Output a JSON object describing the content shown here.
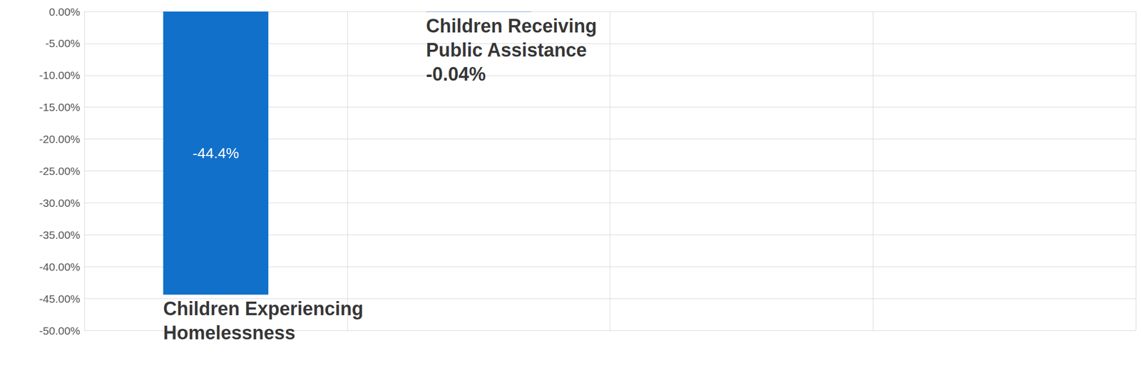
{
  "chart_data": {
    "type": "bar",
    "categories": [
      "Children Experiencing Homelessness",
      "Children Receiving Public Assistance",
      null,
      null
    ],
    "values": [
      -44.4,
      -0.04,
      null,
      null
    ],
    "value_labels": [
      "-44.4%",
      "-0.04%",
      null,
      null
    ],
    "color": "#1070ca",
    "ylim": [
      -50,
      0
    ],
    "yticks": [
      {
        "value": 0,
        "label": "0.00%"
      },
      {
        "value": -5,
        "label": "-5.00%"
      },
      {
        "value": -10,
        "label": "-10.00%"
      },
      {
        "value": -15,
        "label": "-15.00%"
      },
      {
        "value": -20,
        "label": "-20.00%"
      },
      {
        "value": -25,
        "label": "-25.00%"
      },
      {
        "value": -30,
        "label": "-30.00%"
      },
      {
        "value": -35,
        "label": "-35.00%"
      },
      {
        "value": -40,
        "label": "-40.00%"
      },
      {
        "value": -45,
        "label": "-45.00%"
      },
      {
        "value": -50,
        "label": "-50.00%"
      }
    ],
    "grid": true,
    "data_labels": true,
    "tick_labels": "y"
  }
}
